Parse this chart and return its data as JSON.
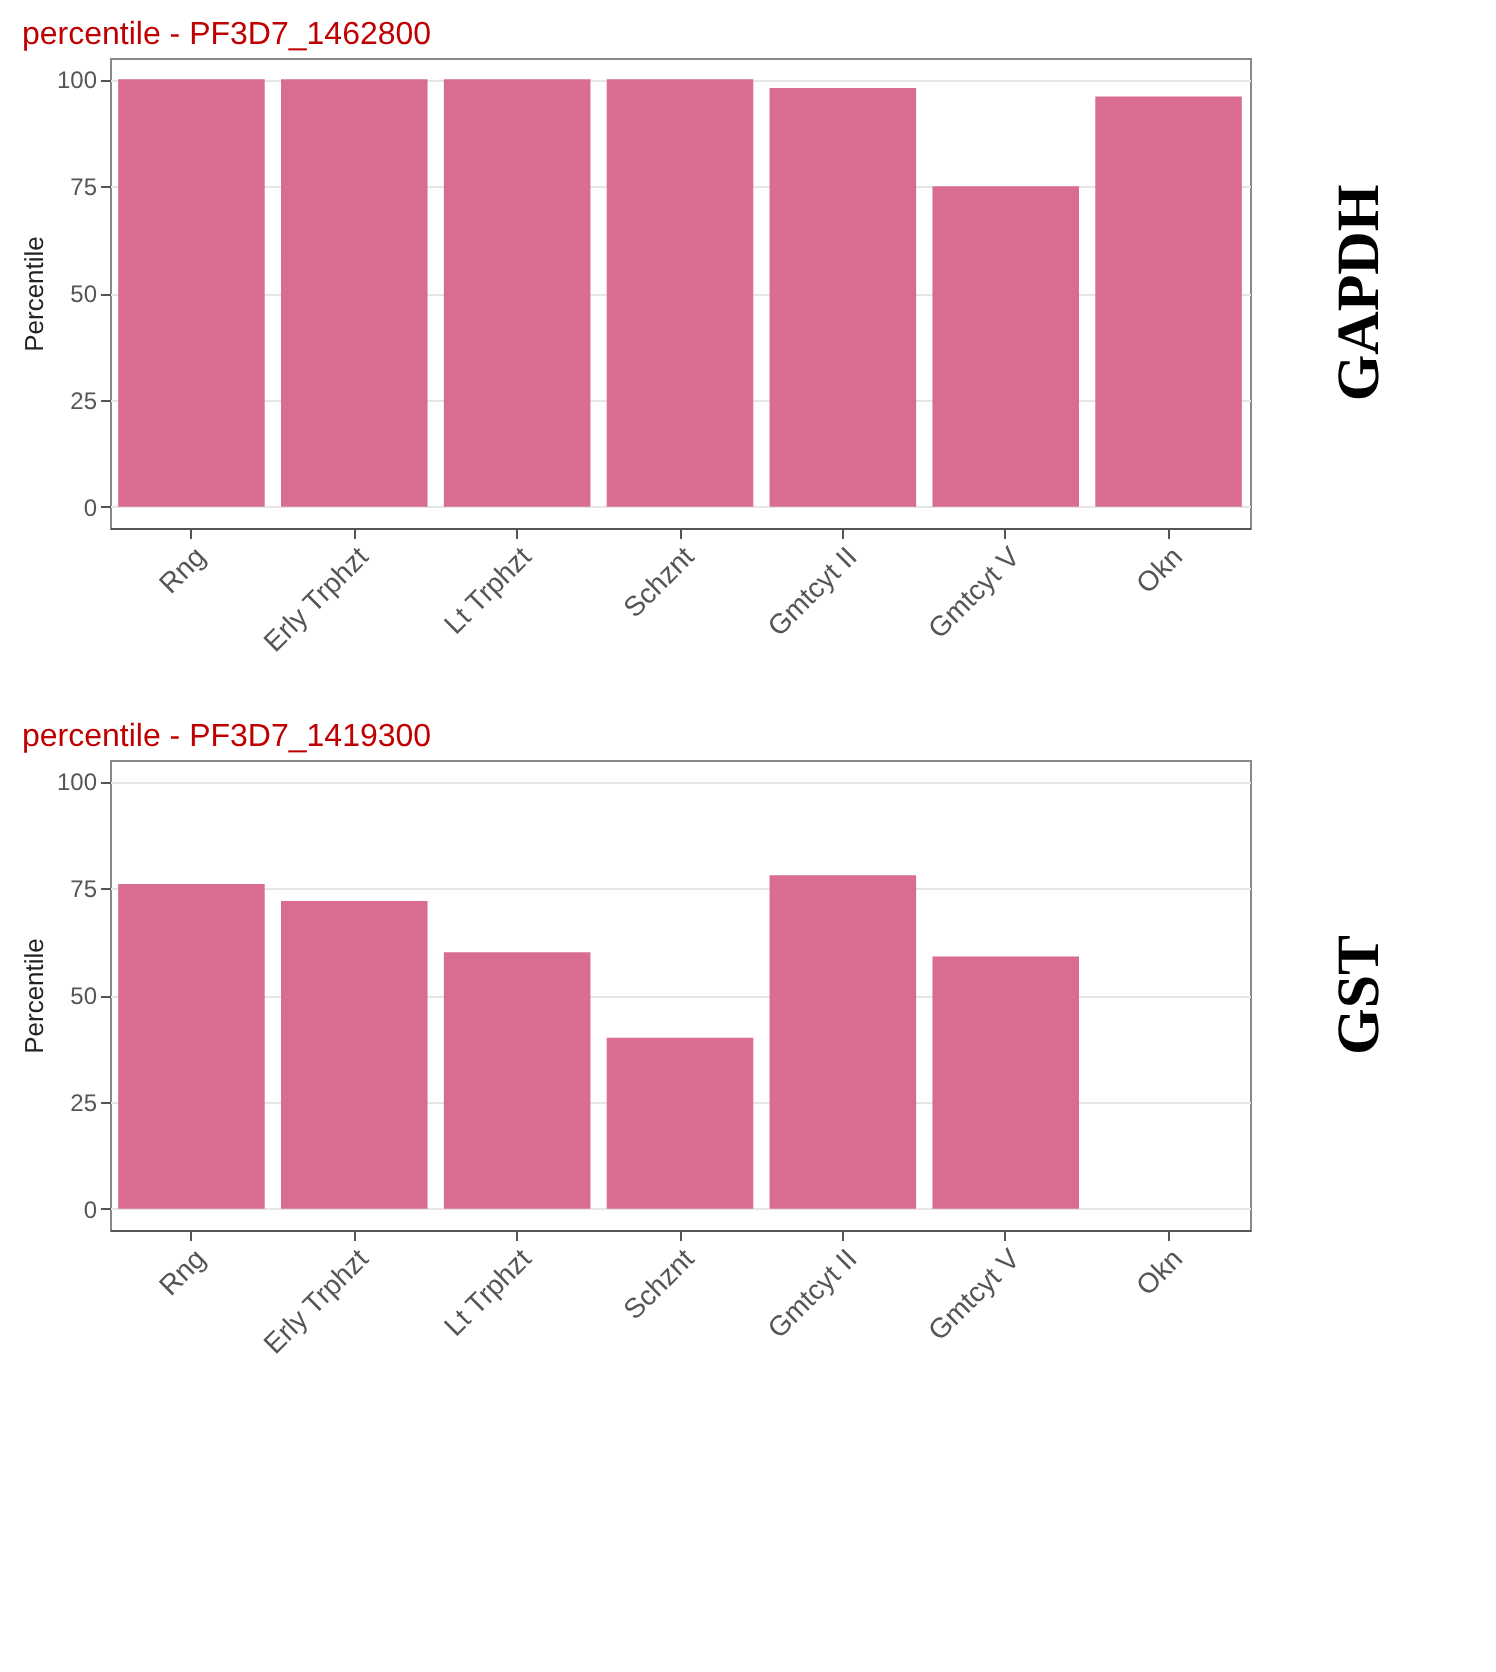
{
  "chart_data": [
    {
      "type": "bar",
      "title": "percentile - PF3D7_1462800",
      "ylabel": "Percentile",
      "annotations": [
        "GAPDH"
      ],
      "categories": [
        "Rng",
        "Erly Trphzt",
        "Lt Trphzt",
        "Schznt",
        "Gmtcyt II",
        "Gmtcyt V",
        "Okn"
      ],
      "values": [
        100,
        100,
        100,
        100,
        98,
        75,
        96
      ],
      "color": "#d86d8f",
      "ylim": [
        -5,
        105
      ],
      "yticks": [
        0,
        25,
        50,
        75,
        100
      ],
      "grid": true
    },
    {
      "type": "bar",
      "title": "percentile - PF3D7_1419300",
      "ylabel": "Percentile",
      "annotations": [
        "GST"
      ],
      "categories": [
        "Rng",
        "Erly Trphzt",
        "Lt Trphzt",
        "Schznt",
        "Gmtcyt II",
        "Gmtcyt V",
        "Okn"
      ],
      "values": [
        76,
        72,
        60,
        40,
        78,
        59,
        null
      ],
      "color": "#d86d8f",
      "ylim": [
        -5,
        105
      ],
      "yticks": [
        0,
        25,
        50,
        75,
        100
      ],
      "grid": true
    }
  ]
}
